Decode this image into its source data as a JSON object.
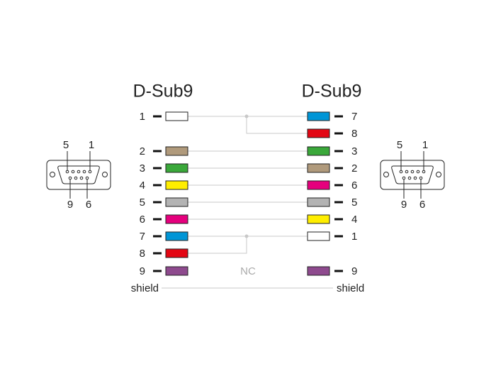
{
  "left": {
    "title": "D-Sub9",
    "pins": [
      {
        "label": "1",
        "color": "#ffffff"
      },
      {
        "label": "2",
        "color": "#b09a7c"
      },
      {
        "label": "3",
        "color": "#3aa83a"
      },
      {
        "label": "4",
        "color": "#ffee00"
      },
      {
        "label": "5",
        "color": "#b3b3b3"
      },
      {
        "label": "6",
        "color": "#e5007d"
      },
      {
        "label": "7",
        "color": "#0095d6"
      },
      {
        "label": "8",
        "color": "#e30613"
      },
      {
        "label": "9",
        "color": "#8e4a8e"
      }
    ],
    "shield": "shield",
    "connector": {
      "pin_labels": [
        "5",
        "1",
        "9",
        "6"
      ]
    }
  },
  "right": {
    "title": "D-Sub9",
    "pins": [
      {
        "label": "7",
        "color": "#0095d6"
      },
      {
        "label": "8",
        "color": "#e30613"
      },
      {
        "label": "3",
        "color": "#3aa83a"
      },
      {
        "label": "2",
        "color": "#b09a7c"
      },
      {
        "label": "6",
        "color": "#e5007d"
      },
      {
        "label": "5",
        "color": "#b3b3b3"
      },
      {
        "label": "4",
        "color": "#ffee00"
      },
      {
        "label": "1",
        "color": "#ffffff"
      },
      {
        "label": "9",
        "color": "#8e4a8e"
      }
    ],
    "shield": "shield",
    "connector": {
      "pin_labels": [
        "5",
        "1",
        "9",
        "6"
      ]
    }
  },
  "nc_label": "NC"
}
